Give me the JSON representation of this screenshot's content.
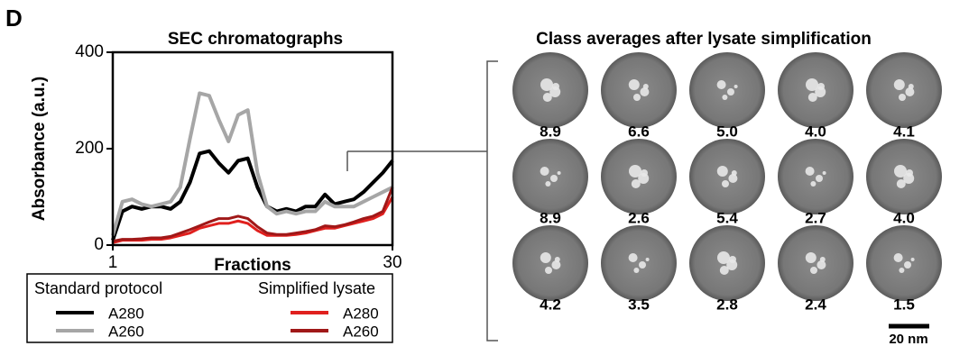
{
  "panel_label": "D",
  "chart_data": {
    "type": "line",
    "title": "SEC chromatographs",
    "x_label": "Fractions",
    "y_label": "Absorbance (a.u.)",
    "x": [
      1,
      2,
      3,
      4,
      5,
      6,
      7,
      8,
      9,
      10,
      11,
      12,
      13,
      14,
      15,
      16,
      17,
      18,
      19,
      20,
      21,
      22,
      23,
      24,
      25,
      26,
      27,
      28,
      29,
      30
    ],
    "xlim": [
      1,
      30
    ],
    "xticks": [
      1,
      30
    ],
    "ylim": [
      0,
      400
    ],
    "yticks": [
      0,
      200,
      400
    ],
    "legend_groups": [
      "Standard protocol",
      "Simplified lysate"
    ],
    "series": [
      {
        "name": "A280",
        "color": "#000000",
        "values": [
          10,
          70,
          80,
          75,
          80,
          80,
          75,
          90,
          130,
          190,
          195,
          170,
          150,
          175,
          180,
          120,
          80,
          70,
          75,
          70,
          80,
          80,
          105,
          85,
          90,
          95,
          110,
          130,
          150,
          175
        ]
      },
      {
        "name": "A260",
        "color": "#a6a6a6",
        "values": [
          20,
          90,
          95,
          85,
          80,
          85,
          90,
          120,
          220,
          315,
          310,
          260,
          215,
          270,
          280,
          150,
          80,
          65,
          70,
          65,
          70,
          70,
          90,
          80,
          80,
          80,
          90,
          100,
          110,
          120
        ]
      },
      {
        "name": "A280",
        "color": "#e0201e",
        "values": [
          5,
          10,
          10,
          10,
          12,
          12,
          15,
          20,
          25,
          35,
          40,
          45,
          45,
          50,
          45,
          30,
          20,
          20,
          20,
          22,
          25,
          30,
          35,
          35,
          40,
          45,
          50,
          55,
          65,
          100
        ]
      },
      {
        "name": "A260",
        "color": "#a01818",
        "values": [
          8,
          12,
          12,
          13,
          15,
          15,
          18,
          25,
          32,
          40,
          48,
          55,
          55,
          60,
          55,
          38,
          25,
          22,
          22,
          25,
          28,
          32,
          40,
          38,
          42,
          48,
          55,
          60,
          70,
          120
        ]
      }
    ]
  },
  "class_averages": {
    "title": "Class averages after lysate simplification",
    "labels": [
      "8.9",
      "6.6",
      "5.0",
      "4.0",
      "4.1",
      "8.9",
      "2.6",
      "5.4",
      "2.7",
      "4.0",
      "4.2",
      "3.5",
      "2.8",
      "2.4",
      "1.5"
    ],
    "scale_bar": "20 nm"
  }
}
